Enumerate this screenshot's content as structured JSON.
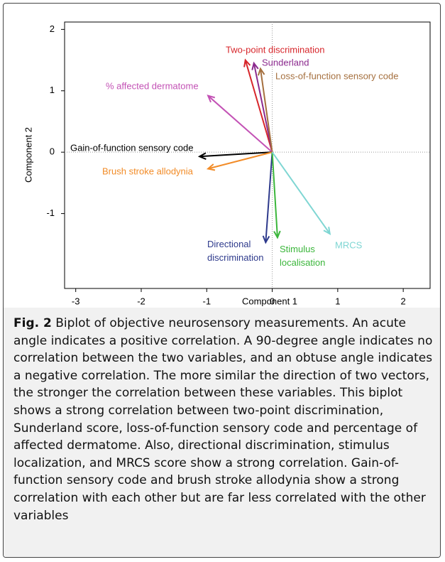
{
  "chart_data": {
    "type": "biplot",
    "xlabel": "Component 1",
    "ylabel": "Component 2",
    "xlim": [
      -3.17,
      2.41
    ],
    "ylim": [
      -2.22,
      2.12
    ],
    "xticks": [
      -3,
      -2,
      -1,
      0,
      1,
      2
    ],
    "yticks": [
      -1,
      0,
      1,
      2
    ],
    "series": [
      {
        "name": "Two-point discrimination",
        "color": "#d7262b",
        "x": -0.41,
        "y": 1.5
      },
      {
        "name": "Sunderland",
        "color": "#8b2a8e",
        "x": -0.28,
        "y": 1.45
      },
      {
        "name": "Loss-of-function  sensory code",
        "color": "#a5703f",
        "x": -0.18,
        "y": 1.36
      },
      {
        "name": "% affected dermatome",
        "color": "#c352b5",
        "x": -0.98,
        "y": 0.92
      },
      {
        "name": "Gain-of-function  sensory code",
        "color": "#000000",
        "x": -1.11,
        "y": -0.07
      },
      {
        "name": "Brush stroke allodynia",
        "color": "#f28c28",
        "x": -0.98,
        "y": -0.27
      },
      {
        "name": "Directional discrimination",
        "color": "#2e3a8c",
        "x": -0.1,
        "y": -1.47
      },
      {
        "name": "Stimulus localisation",
        "color": "#3bb63b",
        "x": 0.08,
        "y": -1.39
      },
      {
        "name": "MRCS",
        "color": "#7fd6d3",
        "x": 0.88,
        "y": -1.33
      }
    ]
  },
  "caption": {
    "label": "Fig. 2",
    "text": " Biplot of objective neurosensory measurements. An acute angle indicates a positive correlation. A 90-degree angle indicates no correlation between the two variables, and an obtuse angle indicates a negative correlation. The more similar the direction of two vectors, the stronger the correlation between these variables. This biplot shows a strong correlation between two-point discrimination, Sunderland score, loss-of-function sensory code and percentage of affected dermatome. Also, directional discrimination, stimulus localization, and MRCS score show a strong correlation. Gain-of-function sensory code and brush stroke allodynia show a strong correlation with each other but are far less correlated with the other variables"
  }
}
